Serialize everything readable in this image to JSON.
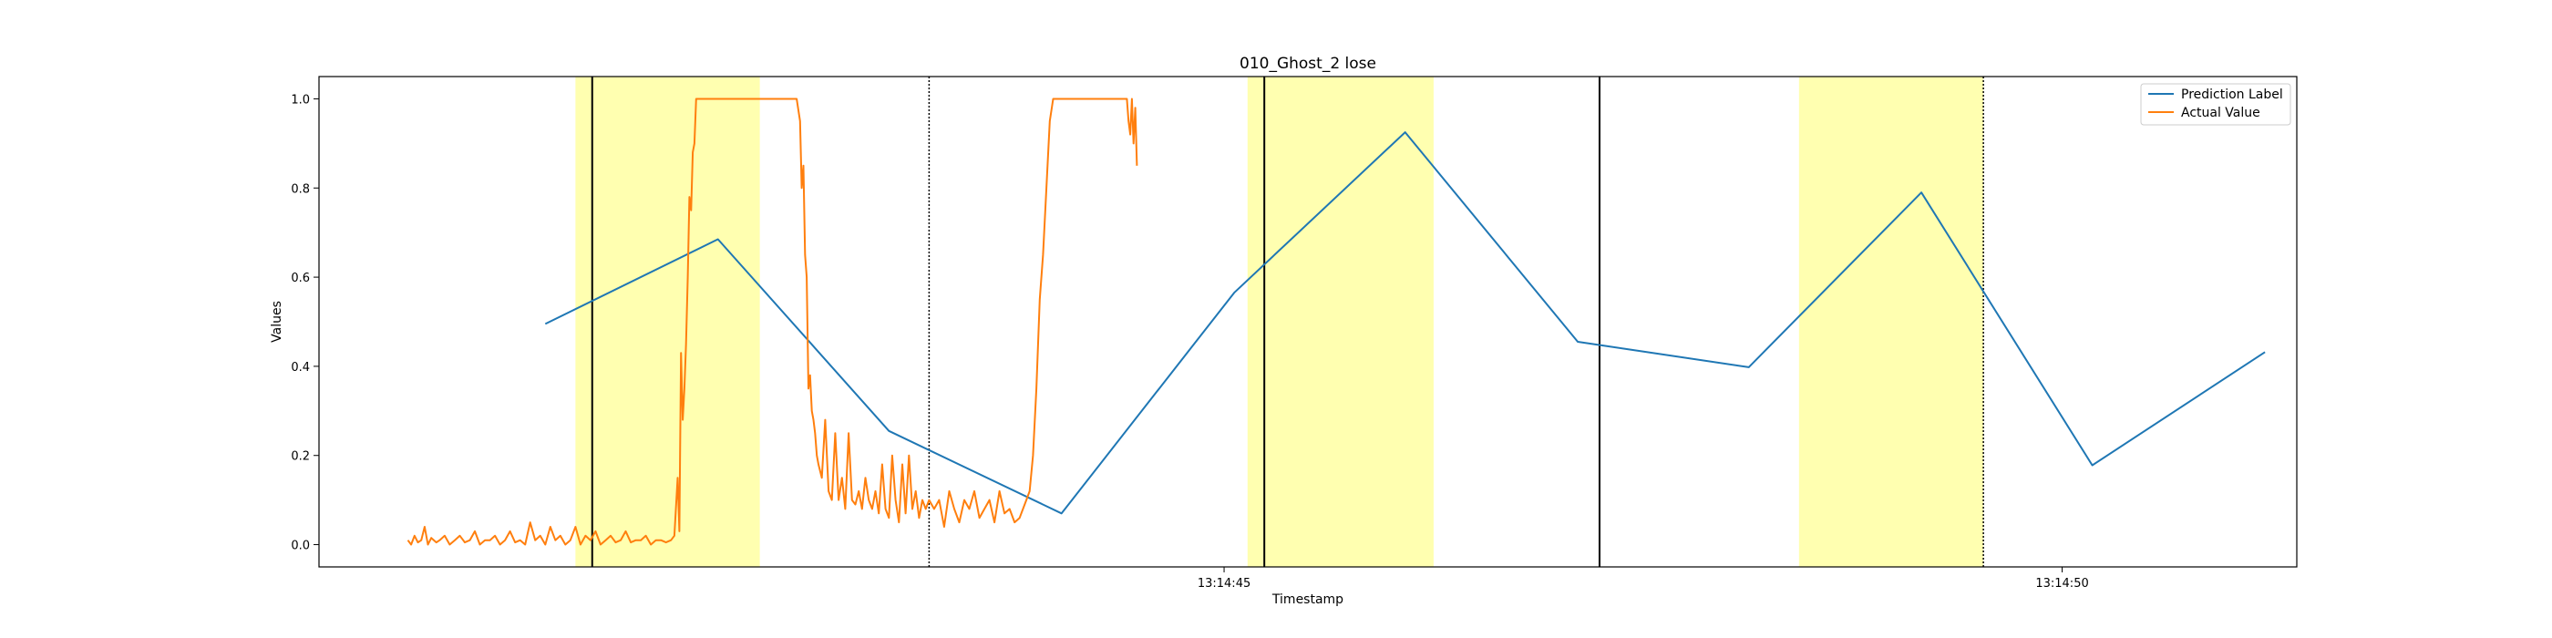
{
  "chart_data": {
    "type": "line",
    "title": "010_Ghost_2 lose",
    "xlabel": "Timestamp",
    "ylabel": "Values",
    "x_ticks": [
      {
        "value": 45,
        "label": "13:14:45"
      },
      {
        "value": 50,
        "label": "13:14:50"
      }
    ],
    "xlim": [
      39.6,
      51.4
    ],
    "ylim": [
      -0.05,
      1.05
    ],
    "y_ticks": [
      {
        "value": 0.0,
        "label": "0.0"
      },
      {
        "value": 0.2,
        "label": "0.2"
      },
      {
        "value": 0.4,
        "label": "0.4"
      },
      {
        "value": 0.6,
        "label": "0.6"
      },
      {
        "value": 0.8,
        "label": "0.8"
      },
      {
        "value": 1.0,
        "label": "1.0"
      }
    ],
    "grid": false,
    "legend_position": "top-right",
    "highlight_regions": [
      {
        "x0": 41.13,
        "x1": 42.23,
        "color": "#ffffb0"
      },
      {
        "x0": 45.14,
        "x1": 46.25,
        "color": "#ffffb0"
      },
      {
        "x0": 48.43,
        "x1": 49.53,
        "color": "#ffffb0"
      }
    ],
    "vertical_lines": [
      {
        "x": 41.23,
        "style": "solid"
      },
      {
        "x": 43.24,
        "style": "dotted"
      },
      {
        "x": 45.24,
        "style": "solid"
      },
      {
        "x": 47.24,
        "style": "solid"
      },
      {
        "x": 49.53,
        "style": "dotted"
      }
    ],
    "series": [
      {
        "name": "Prediction Label",
        "color": "#1f77b4",
        "x": [
          40.95,
          41.98,
          43.0,
          44.03,
          45.06,
          46.08,
          47.11,
          48.13,
          49.16,
          50.18,
          51.21
        ],
        "y": [
          0.495,
          0.685,
          0.255,
          0.07,
          0.565,
          0.925,
          0.455,
          0.398,
          0.79,
          0.178,
          0.432
        ]
      },
      {
        "name": "Actual Value",
        "color": "#ff7f0e",
        "x": [
          40.13,
          40.15,
          40.17,
          40.19,
          40.21,
          40.23,
          40.25,
          40.27,
          40.3,
          40.32,
          40.35,
          40.38,
          40.41,
          40.44,
          40.47,
          40.5,
          40.53,
          40.56,
          40.59,
          40.62,
          40.65,
          40.68,
          40.71,
          40.74,
          40.77,
          40.8,
          40.83,
          40.86,
          40.89,
          40.92,
          40.95,
          40.98,
          41.01,
          41.04,
          41.07,
          41.1,
          41.13,
          41.16,
          41.19,
          41.22,
          41.25,
          41.28,
          41.31,
          41.34,
          41.37,
          41.4,
          41.43,
          41.46,
          41.49,
          41.52,
          41.55,
          41.58,
          41.61,
          41.64,
          41.67,
          41.7,
          41.72,
          41.74,
          41.75,
          41.76,
          41.77,
          41.78,
          41.79,
          41.8,
          41.81,
          41.82,
          41.83,
          41.84,
          41.85,
          41.86,
          41.87,
          41.88,
          41.9,
          41.92,
          41.94,
          41.96,
          41.98,
          42.0,
          42.05,
          42.1,
          42.15,
          42.2,
          42.25,
          42.3,
          42.35,
          42.4,
          42.45,
          42.47,
          42.48,
          42.49,
          42.5,
          42.51,
          42.52,
          42.53,
          42.54,
          42.55,
          42.56,
          42.57,
          42.58,
          42.6,
          42.62,
          42.64,
          42.66,
          42.68,
          42.7,
          42.72,
          42.74,
          42.76,
          42.78,
          42.8,
          42.82,
          42.84,
          42.86,
          42.88,
          42.9,
          42.92,
          42.94,
          42.96,
          42.98,
          43.0,
          43.02,
          43.04,
          43.06,
          43.08,
          43.1,
          43.12,
          43.14,
          43.16,
          43.18,
          43.2,
          43.22,
          43.24,
          43.27,
          43.3,
          43.33,
          43.36,
          43.39,
          43.42,
          43.45,
          43.48,
          43.51,
          43.54,
          43.57,
          43.6,
          43.63,
          43.66,
          43.69,
          43.72,
          43.75,
          43.78,
          43.8,
          43.82,
          43.84,
          43.86,
          43.88,
          43.9,
          43.92,
          43.94,
          43.96,
          43.98,
          44.0,
          44.05,
          44.1,
          44.15,
          44.2,
          44.25,
          44.3,
          44.35,
          44.4,
          44.42,
          44.43,
          44.44,
          44.45,
          44.46,
          44.47,
          44.48
        ],
        "y": [
          0.01,
          0.0,
          0.02,
          0.005,
          0.01,
          0.04,
          0.0,
          0.015,
          0.005,
          0.01,
          0.02,
          0.0,
          0.01,
          0.02,
          0.005,
          0.01,
          0.03,
          0.0,
          0.01,
          0.01,
          0.02,
          0.0,
          0.01,
          0.03,
          0.005,
          0.01,
          0.0,
          0.05,
          0.01,
          0.02,
          0.0,
          0.04,
          0.01,
          0.02,
          0.0,
          0.01,
          0.04,
          0.0,
          0.02,
          0.01,
          0.03,
          0.0,
          0.01,
          0.02,
          0.005,
          0.01,
          0.03,
          0.005,
          0.01,
          0.01,
          0.02,
          0.0,
          0.01,
          0.01,
          0.005,
          0.01,
          0.02,
          0.15,
          0.03,
          0.43,
          0.28,
          0.35,
          0.45,
          0.6,
          0.78,
          0.75,
          0.88,
          0.9,
          1.0,
          1.0,
          1.0,
          1.0,
          1.0,
          1.0,
          1.0,
          1.0,
          1.0,
          1.0,
          1.0,
          1.0,
          1.0,
          1.0,
          1.0,
          1.0,
          1.0,
          1.0,
          1.0,
          0.95,
          0.8,
          0.85,
          0.65,
          0.6,
          0.35,
          0.38,
          0.3,
          0.28,
          0.25,
          0.2,
          0.18,
          0.15,
          0.28,
          0.12,
          0.1,
          0.25,
          0.1,
          0.15,
          0.08,
          0.25,
          0.1,
          0.09,
          0.12,
          0.08,
          0.15,
          0.1,
          0.08,
          0.12,
          0.07,
          0.18,
          0.08,
          0.06,
          0.2,
          0.1,
          0.05,
          0.18,
          0.07,
          0.2,
          0.08,
          0.12,
          0.06,
          0.1,
          0.08,
          0.1,
          0.08,
          0.1,
          0.04,
          0.12,
          0.08,
          0.05,
          0.1,
          0.08,
          0.12,
          0.06,
          0.08,
          0.1,
          0.05,
          0.12,
          0.07,
          0.08,
          0.05,
          0.06,
          0.08,
          0.1,
          0.12,
          0.2,
          0.35,
          0.55,
          0.65,
          0.8,
          0.95,
          1.0,
          1.0,
          1.0,
          1.0,
          1.0,
          1.0,
          1.0,
          1.0,
          1.0,
          1.0,
          1.0,
          0.95,
          0.92,
          1.0,
          0.9,
          0.98,
          0.85
        ]
      }
    ]
  }
}
